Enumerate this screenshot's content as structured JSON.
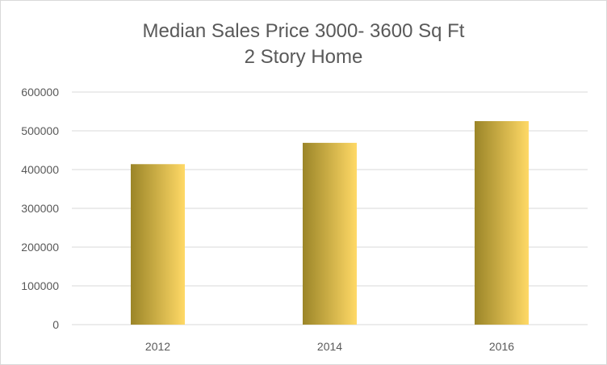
{
  "chart_data": {
    "type": "bar",
    "title": [
      "Median Sales Price 3000- 3600 Sq Ft",
      "2 Story Home"
    ],
    "categories": [
      "2012",
      "2014",
      "2016"
    ],
    "values": [
      414000,
      469000,
      525000
    ],
    "xlabel": "",
    "ylabel": "",
    "ylim": [
      0,
      600000
    ],
    "yticks": [
      "0",
      "100000",
      "200000",
      "300000",
      "400000",
      "500000",
      "600000"
    ],
    "grid": true,
    "legend": "none",
    "colors": {
      "bar_dark": "#9b8528",
      "bar_light": "#ffd966",
      "gridline": "#d9d9d9",
      "text": "#595959"
    }
  }
}
